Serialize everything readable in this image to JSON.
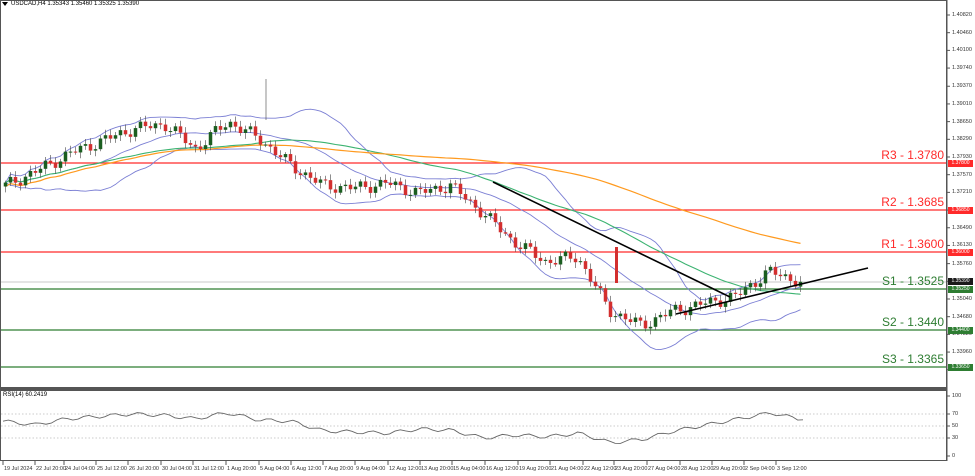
{
  "header": {
    "symbol_line": "USDCAD,H4  1.35343 1.35460 1.35325 1.35390"
  },
  "colors": {
    "resistance": "#ff2a2a",
    "support": "#2e7d32",
    "bullish_candle": "#1b5e20",
    "bearish_candle": "#d32f2f",
    "bollinger": "#7b7fd4",
    "ma_green": "#3cb371",
    "ma_orange": "#ff9a1f",
    "trendline": "#000000",
    "rsi_line": "#666666",
    "current_price_tag": "#1a1a1a"
  },
  "chart_data": [
    {
      "type": "candlestick",
      "title": "USDCAD,H4",
      "ohlc_header": {
        "open": 1.35343,
        "high": 1.3546,
        "low": 1.35325,
        "close": 1.3539
      },
      "y_axis": {
        "ticks": [
          "1.40820",
          "1.40460",
          "1.40100",
          "1.39740",
          "1.39370",
          "1.39010",
          "1.38650",
          "1.38290",
          "1.37930",
          "1.37570",
          "1.37210",
          "1.36850",
          "1.36490",
          "1.36130",
          "1.35760",
          "1.35400",
          "1.35040",
          "1.34680",
          "1.34320",
          "1.33960",
          "1.33600",
          "1.33240",
          "1.32880"
        ],
        "range": [
          1.328,
          1.411
        ]
      },
      "x_axis": {
        "ticks": [
          "19 Jul 2024",
          "22 Jul 20:00",
          "24 Jul 04:00",
          "25 Jul 12:00",
          "26 Jul 20:00",
          "30 Jul 04:00",
          "31 Jul 12:00",
          "1 Aug 20:00",
          "5 Aug 04:00",
          "6 Aug 12:00",
          "7 Aug 20:00",
          "9 Aug 04:00",
          "12 Aug 12:00",
          "13 Aug 20:00",
          "15 Aug 04:00",
          "16 Aug 12:00",
          "19 Aug 20:00",
          "21 Aug 04:00",
          "22 Aug 12:00",
          "23 Aug 20:00",
          "27 Aug 04:00",
          "28 Aug 12:00",
          "29 Aug 20:00",
          "2 Sep 04:00",
          "3 Sep 12:00"
        ]
      },
      "levels": [
        {
          "name": "R3",
          "label": "R3 - 1.3780",
          "value": 1.378,
          "tag": "1.37800",
          "kind": "resistance"
        },
        {
          "name": "R2",
          "label": "R2 - 1.3685",
          "value": 1.3685,
          "tag": "1.36850",
          "kind": "resistance"
        },
        {
          "name": "R1",
          "label": "R1 - 1.3600",
          "value": 1.36,
          "tag": "1.36000",
          "kind": "resistance"
        },
        {
          "name": "S1",
          "label": "S1 - 1.3525",
          "value": 1.3525,
          "tag": "1.35250",
          "kind": "support"
        },
        {
          "name": "S2",
          "label": "S2 - 1.3440",
          "value": 1.344,
          "tag": "1.34400",
          "kind": "support"
        },
        {
          "name": "S3",
          "label": "S3 - 1.3365",
          "value": 1.3365,
          "tag": "1.33650",
          "kind": "support"
        }
      ],
      "current_price": {
        "value": 1.3539,
        "tag": "1.35390"
      },
      "indicators": [
        "Bollinger Bands",
        "Moving Average (green)",
        "Moving Average (orange)",
        "Downtrend line",
        "Uptrend line"
      ],
      "approx_close_path": [
        {
          "x": "19 Jul 2024",
          "close": 1.3735
        },
        {
          "x": "22 Jul 20:00",
          "close": 1.3765
        },
        {
          "x": "24 Jul 04:00",
          "close": 1.38
        },
        {
          "x": "25 Jul 12:00",
          "close": 1.3825
        },
        {
          "x": "26 Jul 20:00",
          "close": 1.385
        },
        {
          "x": "30 Jul 04:00",
          "close": 1.386
        },
        {
          "x": "31 Jul 12:00",
          "close": 1.381
        },
        {
          "x": "1 Aug 20:00",
          "close": 1.3865
        },
        {
          "x": "5 Aug 04:00",
          "close": 1.383
        },
        {
          "x": "6 Aug 12:00",
          "close": 1.3775
        },
        {
          "x": "7 Aug 20:00",
          "close": 1.3735
        },
        {
          "x": "9 Aug 04:00",
          "close": 1.373
        },
        {
          "x": "12 Aug 12:00",
          "close": 1.374
        },
        {
          "x": "13 Aug 20:00",
          "close": 1.372
        },
        {
          "x": "15 Aug 04:00",
          "close": 1.3735
        },
        {
          "x": "16 Aug 12:00",
          "close": 1.368
        },
        {
          "x": "19 Aug 20:00",
          "close": 1.362
        },
        {
          "x": "21 Aug 04:00",
          "close": 1.358
        },
        {
          "x": "22 Aug 12:00",
          "close": 1.359
        },
        {
          "x": "23 Aug 20:00",
          "close": 1.348
        },
        {
          "x": "27 Aug 04:00",
          "close": 1.345
        },
        {
          "x": "28 Aug 12:00",
          "close": 1.348
        },
        {
          "x": "29 Aug 20:00",
          "close": 1.3495
        },
        {
          "x": "2 Sep 04:00",
          "close": 1.351
        },
        {
          "x": "3 Sep 12:00",
          "close": 1.356
        },
        {
          "x": "latest",
          "close": 1.3539
        }
      ]
    },
    {
      "type": "line",
      "title": "RSI(14) 60.2419",
      "indicator": "RSI",
      "period": 14,
      "current_value": 60.2419,
      "y_axis": {
        "ticks": [
          "100",
          "70",
          "50",
          "30",
          "0"
        ],
        "range": [
          0,
          100
        ]
      },
      "reference_levels": [
        70,
        50,
        30
      ],
      "approx_values": [
        58,
        52,
        62,
        66,
        70,
        68,
        62,
        72,
        60,
        58,
        42,
        40,
        38,
        45,
        43,
        30,
        35,
        32,
        38,
        22,
        28,
        42,
        52,
        62,
        72,
        60
      ]
    }
  ],
  "rsi_panel": {
    "label": "RSI(14) 60.2419",
    "ticks": [
      "100",
      "70",
      "50",
      "30",
      "0"
    ]
  }
}
